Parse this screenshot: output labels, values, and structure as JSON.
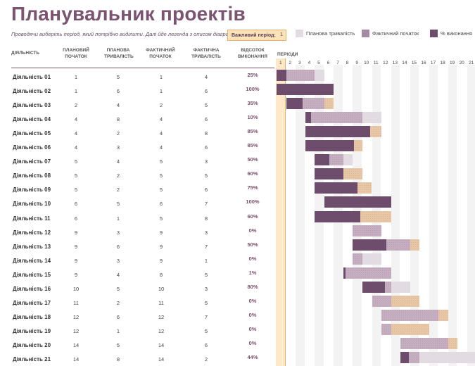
{
  "title": "Планувальник проектів",
  "subtitle": "Проводячи виберіть період, який потрібно виділити.  Далі йде легенда з описом діаграми",
  "highlight": {
    "label": "Важливий період:",
    "value": "1"
  },
  "legend": [
    {
      "label": "Планова тривалість",
      "color": "#e3dbe2"
    },
    {
      "label": "Фактичний початок",
      "color": "#a58aa2"
    },
    {
      "label": "% виконання",
      "color": "#6e4d6c"
    }
  ],
  "columns": {
    "activity": "ДІЯЛЬНІСТЬ",
    "plan_start": "ПЛАНОВИЙ ПОЧАТОК",
    "plan_dur": "ПЛАНОВА ТРИВАЛІСТЬ",
    "act_start": "ФАКТИЧНИЙ ПОЧАТОК",
    "act_dur": "ФАКТИЧНА ТРИВАЛІСТЬ",
    "pct": "ВІДСОТОК ВИКОНАННЯ",
    "periods": "ПЕРІОДИ"
  },
  "periods": [
    "1",
    "2",
    "3",
    "4",
    "5",
    "6",
    "7",
    "8",
    "9",
    "10",
    "11",
    "12",
    "13",
    "14",
    "15",
    "16",
    "17",
    "18",
    "19",
    "20",
    "21"
  ],
  "rows": [
    {
      "name": "Діяльність 01",
      "ps": "1",
      "pd": "5",
      "as": "1",
      "ad": "4",
      "pct": "25%"
    },
    {
      "name": "Діяльність 02",
      "ps": "1",
      "pd": "6",
      "as": "1",
      "ad": "6",
      "pct": "100%"
    },
    {
      "name": "Діяльність 03",
      "ps": "2",
      "pd": "4",
      "as": "2",
      "ad": "5",
      "pct": "35%"
    },
    {
      "name": "Діяльність 04",
      "ps": "4",
      "pd": "8",
      "as": "4",
      "ad": "6",
      "pct": "10%"
    },
    {
      "name": "Діяльність 05",
      "ps": "4",
      "pd": "2",
      "as": "4",
      "ad": "8",
      "pct": "85%"
    },
    {
      "name": "Діяльність 06",
      "ps": "4",
      "pd": "3",
      "as": "4",
      "ad": "6",
      "pct": "85%"
    },
    {
      "name": "Діяльність 07",
      "ps": "5",
      "pd": "4",
      "as": "5",
      "ad": "3",
      "pct": "50%"
    },
    {
      "name": "Діяльність 08",
      "ps": "5",
      "pd": "2",
      "as": "5",
      "ad": "5",
      "pct": "60%"
    },
    {
      "name": "Діяльність 09",
      "ps": "5",
      "pd": "2",
      "as": "5",
      "ad": "6",
      "pct": "75%"
    },
    {
      "name": "Діяльність 10",
      "ps": "6",
      "pd": "5",
      "as": "6",
      "ad": "7",
      "pct": "100%"
    },
    {
      "name": "Діяльність 11",
      "ps": "6",
      "pd": "1",
      "as": "5",
      "ad": "8",
      "pct": "60%"
    },
    {
      "name": "Діяльність 12",
      "ps": "9",
      "pd": "3",
      "as": "9",
      "ad": "3",
      "pct": "0%"
    },
    {
      "name": "Діяльність 13",
      "ps": "9",
      "pd": "6",
      "as": "9",
      "ad": "7",
      "pct": "50%"
    },
    {
      "name": "Діяльність 14",
      "ps": "9",
      "pd": "3",
      "as": "9",
      "ad": "1",
      "pct": "0%"
    },
    {
      "name": "Діяльність 15",
      "ps": "9",
      "pd": "4",
      "as": "8",
      "ad": "5",
      "pct": "1%"
    },
    {
      "name": "Діяльність 16",
      "ps": "10",
      "pd": "5",
      "as": "10",
      "ad": "3",
      "pct": "80%"
    },
    {
      "name": "Діяльність 17",
      "ps": "11",
      "pd": "2",
      "as": "11",
      "ad": "5",
      "pct": "0%"
    },
    {
      "name": "Діяльність 18",
      "ps": "12",
      "pd": "6",
      "as": "12",
      "ad": "7",
      "pct": "0%"
    },
    {
      "name": "Діяльність 19",
      "ps": "12",
      "pd": "1",
      "as": "12",
      "ad": "5",
      "pct": "0%"
    },
    {
      "name": "Діяльність 20",
      "ps": "14",
      "pd": "5",
      "as": "14",
      "ad": "6",
      "pct": "0%"
    },
    {
      "name": "Діяльність 21",
      "ps": "14",
      "pd": "8",
      "as": "14",
      "ad": "2",
      "pct": "44%"
    }
  ]
}
